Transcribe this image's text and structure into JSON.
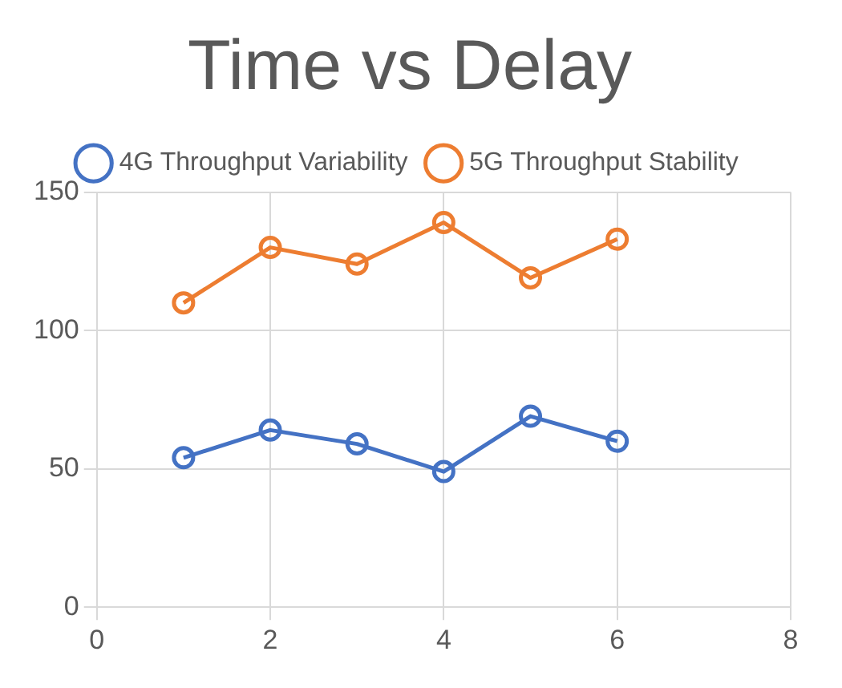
{
  "chart_data": {
    "type": "line",
    "title": "Time vs Delay",
    "x": [
      1,
      2,
      3,
      4,
      5,
      6
    ],
    "series": [
      {
        "name": "4G Throughput Variability",
        "color": "#4472c4",
        "values": [
          54,
          64,
          59,
          49,
          69,
          60
        ]
      },
      {
        "name": "5G Throughput Stability",
        "color": "#ed7d31",
        "values": [
          110,
          130,
          124,
          139,
          119,
          133
        ]
      }
    ],
    "xlim": [
      0,
      8
    ],
    "xticks": [
      0,
      2,
      4,
      6,
      8
    ],
    "ylim": [
      0,
      150
    ],
    "yticks": [
      0,
      50,
      100,
      150
    ],
    "grid": true,
    "legend": "top",
    "marker": "circle",
    "line_style": "solid"
  }
}
